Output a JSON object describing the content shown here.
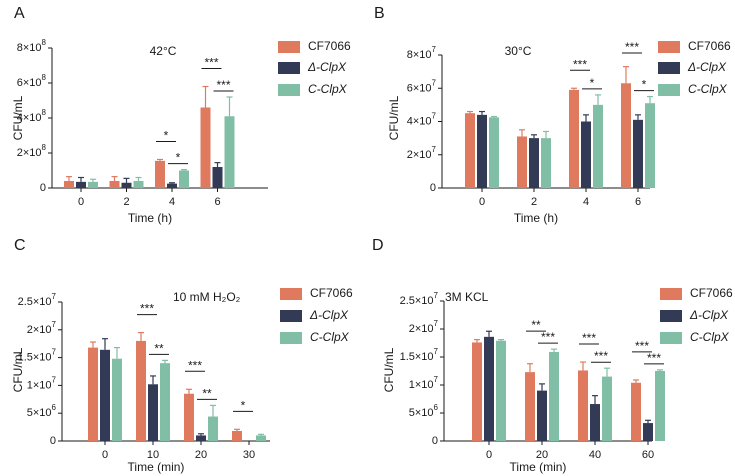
{
  "colors": {
    "CF7066": "#e07a5f",
    "dClpX": "#323a55",
    "CClpX": "#80bea5",
    "axis": "#1a1a1a"
  },
  "chart_data": [
    {
      "panel": "A",
      "type": "bar",
      "title": "42°C",
      "xlabel": "Time (h)",
      "ylabel": "CFU/mL",
      "categories": [
        "0",
        "2",
        "4",
        "6"
      ],
      "ylim": [
        0,
        800000000
      ],
      "ytick_mantissa": [
        "0",
        "2×10",
        "4×10",
        "6×10",
        "8×10"
      ],
      "ytick_exponent": [
        "",
        "8",
        "8",
        "8",
        "8"
      ],
      "legend": [
        "CF7066",
        "Δ-ClpX",
        "C-ClpX"
      ],
      "series": [
        {
          "name": "CF7066",
          "values": [
            40000000,
            40000000,
            155000000,
            460000000
          ],
          "errors": [
            25000000,
            25000000,
            8000000,
            120000000
          ]
        },
        {
          "name": "Δ-ClpX",
          "values": [
            35000000,
            30000000,
            25000000,
            120000000
          ],
          "errors": [
            25000000,
            25000000,
            5000000,
            25000000
          ]
        },
        {
          "name": "C-ClpX",
          "values": [
            35000000,
            40000000,
            100000000,
            410000000
          ],
          "errors": [
            15000000,
            20000000,
            5000000,
            110000000
          ]
        }
      ],
      "sig": [
        {
          "label": "*",
          "cat": 2,
          "pair": "CF7066-ΔClpX"
        },
        {
          "label": "*",
          "cat": 2,
          "pair": "ΔClpX-CClpX"
        },
        {
          "label": "***",
          "cat": 3,
          "pair": "CF7066-ΔClpX"
        },
        {
          "label": "***",
          "cat": 3,
          "pair": "ΔClpX-CClpX"
        }
      ]
    },
    {
      "panel": "B",
      "type": "bar",
      "title": "30°C",
      "xlabel": "Time (h)",
      "ylabel": "CFU/mL",
      "categories": [
        "0",
        "2",
        "4",
        "6"
      ],
      "ylim": [
        0,
        80000000
      ],
      "ytick_mantissa": [
        "0",
        "2×10",
        "4×10",
        "6×10",
        "8×10"
      ],
      "ytick_exponent": [
        "",
        "7",
        "7",
        "7",
        "7"
      ],
      "legend": [
        "CF7066",
        "Δ-ClpX",
        "C-ClpX"
      ],
      "series": [
        {
          "name": "CF7066",
          "values": [
            45000000,
            31000000,
            59000000,
            63000000
          ],
          "errors": [
            1000000,
            4000000,
            1000000,
            10000000
          ]
        },
        {
          "name": "Δ-ClpX",
          "values": [
            44000000,
            30000000,
            40000000,
            41000000
          ],
          "errors": [
            2000000,
            2000000,
            4000000,
            3000000
          ]
        },
        {
          "name": "C-ClpX",
          "values": [
            42500000,
            30000000,
            50000000,
            51000000
          ],
          "errors": [
            500000,
            4000000,
            6000000,
            4000000
          ]
        }
      ],
      "sig": [
        {
          "label": "***",
          "cat": 2,
          "pair": "CF7066-ΔClpX"
        },
        {
          "label": "*",
          "cat": 2,
          "pair": "ΔClpX-CClpX"
        },
        {
          "label": "***",
          "cat": 3,
          "pair": "CF7066-ΔClpX"
        },
        {
          "label": "*",
          "cat": 3,
          "pair": "ΔClpX-CClpX"
        }
      ]
    },
    {
      "panel": "C",
      "type": "bar",
      "title": "10 mM H₂O₂",
      "xlabel": "Time (min)",
      "ylabel": "CFU/mL",
      "categories": [
        "0",
        "10",
        "20",
        "30"
      ],
      "ylim": [
        0,
        25000000
      ],
      "ytick_mantissa": [
        "0",
        "5×10",
        "1×10",
        "1.5×10",
        "2×10",
        "2.5×10"
      ],
      "ytick_exponent": [
        "",
        "6",
        "7",
        "7",
        "7",
        "7"
      ],
      "legend": [
        "CF7066",
        "Δ-ClpX",
        "C-ClpX"
      ],
      "series": [
        {
          "name": "CF7066",
          "values": [
            16800000,
            18000000,
            8500000,
            1800000
          ],
          "errors": [
            1000000,
            1500000,
            800000,
            300000
          ]
        },
        {
          "name": "Δ-ClpX",
          "values": [
            16400000,
            10200000,
            1000000,
            0
          ],
          "errors": [
            2000000,
            1500000,
            300000,
            0
          ]
        },
        {
          "name": "C-ClpX",
          "values": [
            14800000,
            14000000,
            4400000,
            1000000
          ],
          "errors": [
            2000000,
            500000,
            2000000,
            200000
          ]
        }
      ],
      "sig": [
        {
          "label": "***",
          "cat": 1,
          "pair": "CF7066-ΔClpX"
        },
        {
          "label": "**",
          "cat": 1,
          "pair": "ΔClpX-CClpX"
        },
        {
          "label": "***",
          "cat": 2,
          "pair": "CF7066-ΔClpX"
        },
        {
          "label": "**",
          "cat": 2,
          "pair": "ΔClpX-CClpX"
        },
        {
          "label": "*",
          "cat": 3,
          "pair": "CF7066-ΔClpX"
        }
      ]
    },
    {
      "panel": "D",
      "type": "bar",
      "title": "3M KCL",
      "xlabel": "Time (min)",
      "ylabel": "CFU/mL",
      "categories": [
        "0",
        "20",
        "40",
        "60"
      ],
      "ylim": [
        0,
        25000000
      ],
      "ytick_mantissa": [
        "0",
        "5×10",
        "1×10",
        "1.5×10",
        "2×10",
        "2.5×10"
      ],
      "ytick_exponent": [
        "",
        "6",
        "7",
        "7",
        "7",
        "7"
      ],
      "legend": [
        "CF7066",
        "Δ-ClpX",
        "C-ClpX"
      ],
      "series": [
        {
          "name": "CF7066",
          "values": [
            17600000,
            12300000,
            12600000,
            10400000
          ],
          "errors": [
            500000,
            1500000,
            1500000,
            500000
          ]
        },
        {
          "name": "Δ-ClpX",
          "values": [
            18600000,
            9000000,
            6600000,
            3200000
          ],
          "errors": [
            1000000,
            1200000,
            1500000,
            500000
          ]
        },
        {
          "name": "C-ClpX",
          "values": [
            17900000,
            15900000,
            11500000,
            12500000
          ],
          "errors": [
            200000,
            500000,
            1500000,
            200000
          ]
        }
      ],
      "sig": [
        {
          "label": "**",
          "cat": 1,
          "pair": "CF7066-ΔClpX"
        },
        {
          "label": "***",
          "cat": 1,
          "pair": "ΔClpX-CClpX"
        },
        {
          "label": "***",
          "cat": 2,
          "pair": "CF7066-ΔClpX"
        },
        {
          "label": "***",
          "cat": 2,
          "pair": "ΔClpX-CClpX"
        },
        {
          "label": "***",
          "cat": 3,
          "pair": "CF7066-ΔClpX"
        },
        {
          "label": "***",
          "cat": 3,
          "pair": "ΔClpX-CClpX"
        }
      ]
    }
  ]
}
